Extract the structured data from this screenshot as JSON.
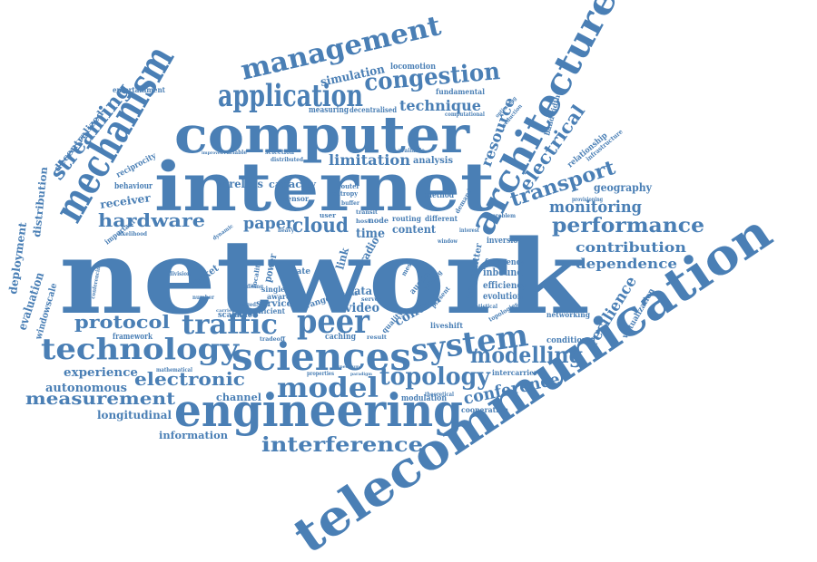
{
  "cloud": {
    "color": "#4a7fb5",
    "words": [
      "network",
      "internet",
      "computer",
      "telecommunication",
      "architecture",
      "mechanism",
      "engineering",
      "sciences",
      "technology",
      "system",
      "management",
      "application",
      "traffic",
      "peer",
      "model",
      "topology",
      "modelling",
      "performance",
      "interference",
      "congestion",
      "streaming",
      "electrical",
      "transport",
      "hardware",
      "protocol",
      "measurement",
      "electronic",
      "monitoring",
      "contribution",
      "dependence",
      "conference",
      "resilience",
      "cloud",
      "paper",
      "limitation",
      "technique",
      "resource",
      "simulation",
      "evaluation",
      "deployment",
      "distribution",
      "decentralized",
      "experience",
      "autonomous",
      "longitudinal",
      "information",
      "channel",
      "video",
      "control",
      "geography",
      "wireless",
      "capacity",
      "analysis",
      "receiver",
      "time",
      "content",
      "radio",
      "link",
      "data",
      "socket",
      "service",
      "transmitter",
      "inbound",
      "efficiency",
      "evolution",
      "frequency",
      "conditional",
      "virtualization",
      "networking",
      "modulation",
      "cooperation",
      "intercarrier",
      "framework",
      "scalable",
      "caching",
      "windowscale",
      "bandwidth",
      "relationship",
      "infrastructure",
      "locomotion",
      "fundamental",
      "measuring",
      "decentralised",
      "computational",
      "entertainment",
      "reciprocity",
      "behaviour",
      "sensor",
      "router",
      "entropy",
      "transit",
      "routing",
      "different",
      "method",
      "user",
      "host",
      "node",
      "selection",
      "distributed",
      "available",
      "demand",
      "inversion",
      "power",
      "rate",
      "aware",
      "single",
      "range",
      "liveshift",
      "quality",
      "mesh",
      "auction",
      "pricing",
      "present",
      "efficient",
      "heavy",
      "dynamic",
      "important",
      "likelihood",
      "conferencing",
      "division",
      "number",
      "mathematical",
      "properties",
      "spectrum",
      "paradigm",
      "theoretical",
      "statistical",
      "topologies",
      "result",
      "media",
      "server",
      "tradeoff",
      "provisioning",
      "problem",
      "buffer",
      "legged",
      "locality",
      "editing",
      "window",
      "interest",
      "variable",
      "improved",
      "carrier",
      "optimizing",
      "reduction"
    ]
  }
}
